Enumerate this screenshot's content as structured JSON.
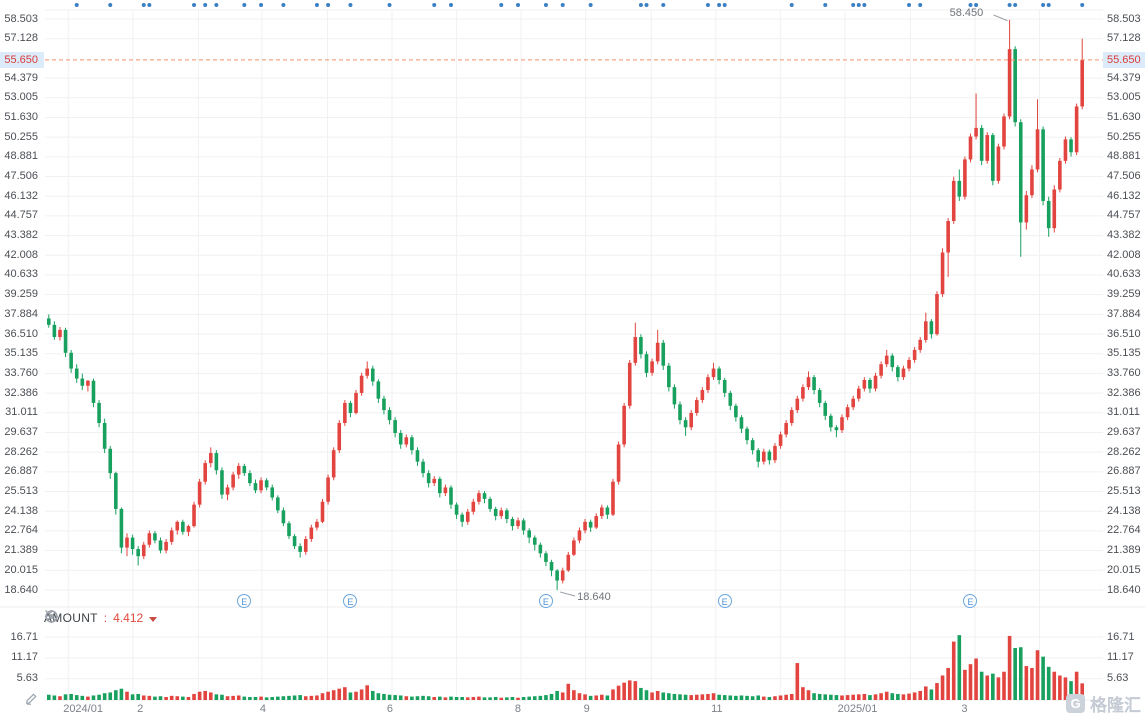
{
  "colors": {
    "up": "#e2443f",
    "down": "#18a05e",
    "grid": "#f0f1f3",
    "current_price_line": "#f0906a",
    "price_tag_bg": "#dcebf9",
    "price_tag_text": "#d93a3a",
    "event_dot": "#3b80c4",
    "earnings_marker": "#4f94d6",
    "axis_text": "#4b4f55",
    "time_text": "#7c828a"
  },
  "indicator": {
    "settings_icon": "gear-icon",
    "remove_icon": "circle-x-icon",
    "name": "AMOUNT",
    "separator": ":",
    "value": "4.412"
  },
  "watermark": {
    "logo_letter": "G",
    "text": "格隆汇"
  },
  "tags": {
    "current_price": "55.650"
  },
  "annotations": {
    "high": "58.450",
    "low": "18.640"
  },
  "chart_data": {
    "type": "candlestick-with-volume",
    "title": "",
    "price_axis": {
      "tick_labels": [
        "58.503",
        "57.128",
        "54.379",
        "53.005",
        "51.630",
        "50.255",
        "48.881",
        "47.506",
        "46.132",
        "44.757",
        "43.382",
        "42.008",
        "40.633",
        "39.259",
        "37.884",
        "36.510",
        "35.135",
        "33.760",
        "32.386",
        "31.011",
        "29.637",
        "28.262",
        "26.887",
        "25.513",
        "24.138",
        "22.764",
        "21.389",
        "20.015",
        "18.640"
      ],
      "ylim": [
        18.64,
        58.503
      ],
      "current_price": 55.65,
      "shown_both_sides": true
    },
    "volume_axis": {
      "tick_labels": [
        "16.71",
        "11.17",
        "5.63"
      ],
      "max": 18.0
    },
    "time_axis": {
      "ticks": [
        {
          "label": "2024/01",
          "f": 0.036
        },
        {
          "label": "2",
          "f": 0.09
        },
        {
          "label": "4",
          "f": 0.206
        },
        {
          "label": "6",
          "f": 0.326
        },
        {
          "label": "8",
          "f": 0.447
        },
        {
          "label": "9",
          "f": 0.512
        },
        {
          "label": "11",
          "f": 0.635
        },
        {
          "label": "2025/01",
          "f": 0.768
        },
        {
          "label": "3",
          "f": 0.869
        }
      ],
      "month_grid_f": [
        0.022,
        0.083,
        0.145,
        0.205,
        0.267,
        0.328,
        0.389,
        0.45,
        0.511,
        0.573,
        0.634,
        0.695,
        0.756,
        0.818,
        0.879,
        0.94
      ]
    },
    "high_point": 58.45,
    "low_point": 18.64,
    "earnings_marker_indices": [
      35,
      54,
      89,
      121,
      165
    ],
    "event_dot_indices": [
      5,
      11,
      17,
      18,
      26,
      28,
      30,
      35,
      38,
      42,
      48,
      50,
      54,
      61,
      69,
      72,
      81,
      84,
      89,
      92,
      97,
      106,
      107,
      110,
      118,
      120,
      121,
      133,
      139,
      144,
      145,
      146,
      154,
      156,
      165,
      166,
      172,
      173,
      178,
      179,
      185
    ],
    "candles": [
      [
        37.6,
        37.88,
        36.95,
        37.15,
        1.4
      ],
      [
        37.15,
        37.4,
        36.1,
        36.3,
        1.2
      ],
      [
        36.3,
        37.0,
        36.05,
        36.8,
        1.0
      ],
      [
        36.8,
        36.95,
        34.9,
        35.2,
        1.5
      ],
      [
        35.2,
        35.4,
        33.8,
        34.1,
        1.6
      ],
      [
        34.1,
        34.4,
        33.1,
        33.4,
        1.3
      ],
      [
        33.4,
        33.75,
        32.6,
        32.9,
        1.1
      ],
      [
        32.9,
        33.3,
        32.5,
        33.25,
        0.9
      ],
      [
        33.25,
        33.4,
        31.4,
        31.7,
        1.2
      ],
      [
        31.7,
        31.9,
        30.0,
        30.3,
        1.4
      ],
      [
        30.3,
        30.6,
        28.2,
        28.5,
        1.8
      ],
      [
        28.5,
        28.7,
        26.4,
        26.8,
        2.0
      ],
      [
        26.8,
        26.9,
        23.9,
        24.3,
        2.6
      ],
      [
        24.3,
        24.4,
        21.2,
        21.6,
        3.0
      ],
      [
        21.6,
        22.6,
        21.0,
        22.3,
        2.2
      ],
      [
        22.3,
        22.5,
        21.1,
        21.5,
        1.5
      ],
      [
        21.5,
        21.7,
        20.35,
        21.0,
        1.6
      ],
      [
        21.0,
        22.0,
        20.8,
        21.8,
        1.2
      ],
      [
        21.8,
        22.8,
        21.6,
        22.6,
        1.1
      ],
      [
        22.6,
        22.75,
        21.9,
        22.1,
        0.9
      ],
      [
        22.1,
        22.3,
        21.2,
        21.4,
        1.0
      ],
      [
        21.4,
        22.2,
        21.2,
        22.0,
        0.8
      ],
      [
        22.0,
        23.0,
        21.8,
        22.8,
        1.1
      ],
      [
        22.8,
        23.5,
        22.5,
        23.4,
        1.0
      ],
      [
        23.4,
        23.55,
        22.5,
        22.7,
        0.9
      ],
      [
        22.7,
        23.2,
        22.4,
        23.1,
        0.8
      ],
      [
        23.1,
        24.8,
        23.0,
        24.6,
        1.6
      ],
      [
        24.6,
        26.4,
        24.4,
        26.2,
        2.2
      ],
      [
        26.2,
        27.7,
        26.0,
        27.5,
        2.4
      ],
      [
        27.5,
        28.6,
        27.2,
        28.2,
        2.0
      ],
      [
        28.2,
        28.4,
        26.7,
        27.0,
        1.5
      ],
      [
        27.0,
        27.2,
        25.0,
        25.3,
        1.4
      ],
      [
        25.3,
        26.0,
        24.9,
        25.8,
        1.0
      ],
      [
        25.8,
        26.9,
        25.6,
        26.7,
        1.1
      ],
      [
        26.7,
        27.5,
        26.4,
        27.3,
        1.2
      ],
      [
        27.3,
        27.45,
        26.6,
        26.8,
        0.9
      ],
      [
        26.8,
        27.0,
        25.9,
        26.1,
        0.8
      ],
      [
        26.1,
        26.35,
        25.4,
        25.6,
        0.8
      ],
      [
        25.6,
        26.5,
        25.4,
        26.3,
        0.9
      ],
      [
        26.3,
        26.45,
        25.6,
        25.8,
        0.7
      ],
      [
        25.8,
        26.0,
        24.9,
        25.1,
        0.8
      ],
      [
        25.1,
        25.25,
        24.0,
        24.2,
        0.9
      ],
      [
        24.2,
        24.4,
        23.1,
        23.3,
        1.0
      ],
      [
        23.3,
        23.45,
        22.2,
        22.4,
        1.1
      ],
      [
        22.4,
        22.55,
        21.5,
        21.7,
        1.2
      ],
      [
        21.7,
        21.9,
        20.9,
        21.3,
        1.3
      ],
      [
        21.3,
        22.4,
        21.1,
        22.2,
        1.0
      ],
      [
        22.2,
        23.2,
        22.0,
        23.0,
        1.1
      ],
      [
        23.0,
        23.6,
        22.8,
        23.4,
        1.2
      ],
      [
        23.4,
        25.0,
        23.3,
        24.8,
        1.8
      ],
      [
        24.8,
        26.7,
        24.6,
        26.5,
        2.2
      ],
      [
        26.5,
        28.6,
        26.3,
        28.4,
        2.6
      ],
      [
        28.4,
        30.5,
        28.2,
        30.3,
        3.0
      ],
      [
        30.3,
        31.9,
        30.1,
        31.7,
        3.4
      ],
      [
        31.7,
        31.85,
        30.7,
        31.0,
        2.0
      ],
      [
        31.0,
        32.6,
        30.9,
        32.4,
        2.2
      ],
      [
        32.4,
        33.8,
        32.2,
        33.6,
        2.8
      ],
      [
        33.6,
        34.6,
        33.4,
        34.1,
        3.9
      ],
      [
        34.1,
        34.3,
        32.9,
        33.2,
        2.4
      ],
      [
        33.2,
        33.35,
        31.7,
        32.0,
        1.8
      ],
      [
        32.0,
        32.2,
        30.9,
        31.2,
        1.6
      ],
      [
        31.2,
        31.4,
        30.2,
        30.5,
        1.4
      ],
      [
        30.5,
        30.7,
        29.3,
        29.6,
        1.3
      ],
      [
        29.6,
        29.8,
        28.5,
        28.8,
        1.2
      ],
      [
        28.8,
        29.5,
        28.6,
        29.3,
        1.0
      ],
      [
        29.3,
        29.45,
        28.1,
        28.4,
        0.9
      ],
      [
        28.4,
        28.6,
        27.3,
        27.6,
        1.0
      ],
      [
        27.6,
        27.8,
        26.5,
        26.8,
        1.1
      ],
      [
        26.8,
        27.0,
        25.8,
        26.1,
        1.0
      ],
      [
        26.1,
        26.6,
        25.9,
        26.4,
        0.8
      ],
      [
        26.4,
        26.55,
        25.1,
        25.4,
        0.9
      ],
      [
        25.4,
        26.0,
        25.2,
        25.8,
        0.7
      ],
      [
        25.8,
        25.95,
        24.3,
        24.6,
        0.9
      ],
      [
        24.6,
        24.75,
        23.6,
        23.9,
        0.8
      ],
      [
        23.9,
        24.05,
        23.05,
        23.4,
        0.8
      ],
      [
        23.4,
        24.3,
        23.2,
        24.1,
        0.7
      ],
      [
        24.1,
        25.0,
        23.9,
        24.8,
        0.8
      ],
      [
        24.8,
        25.6,
        24.6,
        25.4,
        0.9
      ],
      [
        25.4,
        25.55,
        24.7,
        25.0,
        0.7
      ],
      [
        25.0,
        25.15,
        24.1,
        24.3,
        0.7
      ],
      [
        24.3,
        24.45,
        23.5,
        23.8,
        0.8
      ],
      [
        23.8,
        24.4,
        23.6,
        24.2,
        0.6
      ],
      [
        24.2,
        24.35,
        23.3,
        23.6,
        0.7
      ],
      [
        23.6,
        23.75,
        22.8,
        23.1,
        0.8
      ],
      [
        23.1,
        23.7,
        22.9,
        23.5,
        0.6
      ],
      [
        23.5,
        23.65,
        22.5,
        22.8,
        0.8
      ],
      [
        22.8,
        22.95,
        21.9,
        22.3,
        0.9
      ],
      [
        22.3,
        22.45,
        21.4,
        21.8,
        1.0
      ],
      [
        21.8,
        21.95,
        20.9,
        21.2,
        1.1
      ],
      [
        21.2,
        21.35,
        20.3,
        20.6,
        1.3
      ],
      [
        20.6,
        20.75,
        19.6,
        20.0,
        1.6
      ],
      [
        20.0,
        20.1,
        18.64,
        19.3,
        2.4
      ],
      [
        19.3,
        20.2,
        19.1,
        20.0,
        2.0
      ],
      [
        20.0,
        21.3,
        19.9,
        21.1,
        4.3
      ],
      [
        21.1,
        22.3,
        21.0,
        22.1,
        2.6
      ],
      [
        22.1,
        23.0,
        21.9,
        22.8,
        1.8
      ],
      [
        22.8,
        23.6,
        22.6,
        23.4,
        1.5
      ],
      [
        23.4,
        23.55,
        22.7,
        23.0,
        1.1
      ],
      [
        23.0,
        24.0,
        22.9,
        23.8,
        1.2
      ],
      [
        23.8,
        24.6,
        23.6,
        24.4,
        1.4
      ],
      [
        24.4,
        24.55,
        23.6,
        23.9,
        1.2
      ],
      [
        23.9,
        26.4,
        23.8,
        26.2,
        2.8
      ],
      [
        26.2,
        29.0,
        26.0,
        28.8,
        3.8
      ],
      [
        28.8,
        31.7,
        28.6,
        31.5,
        4.6
      ],
      [
        31.5,
        34.7,
        31.3,
        34.5,
        5.2
      ],
      [
        34.5,
        37.3,
        34.3,
        36.3,
        5.0
      ],
      [
        36.3,
        36.5,
        34.8,
        35.1,
        3.2
      ],
      [
        35.1,
        35.3,
        33.5,
        33.8,
        2.6
      ],
      [
        33.8,
        34.8,
        33.6,
        34.6,
        2.0
      ],
      [
        34.6,
        36.8,
        34.4,
        35.9,
        2.4
      ],
      [
        35.9,
        36.1,
        34.0,
        34.3,
        2.0
      ],
      [
        34.3,
        34.5,
        32.5,
        32.8,
        1.8
      ],
      [
        32.8,
        33.0,
        31.3,
        31.6,
        1.6
      ],
      [
        31.6,
        31.8,
        30.2,
        30.5,
        1.5
      ],
      [
        30.5,
        30.7,
        29.4,
        30.0,
        1.4
      ],
      [
        30.0,
        31.2,
        29.8,
        31.0,
        1.3
      ],
      [
        31.0,
        32.1,
        30.8,
        31.9,
        1.4
      ],
      [
        31.9,
        32.8,
        31.7,
        32.6,
        1.5
      ],
      [
        32.6,
        33.7,
        32.4,
        33.5,
        1.6
      ],
      [
        33.5,
        34.5,
        33.3,
        34.1,
        1.8
      ],
      [
        34.1,
        34.25,
        33.0,
        33.3,
        1.4
      ],
      [
        33.3,
        33.45,
        32.1,
        32.4,
        1.3
      ],
      [
        32.4,
        32.55,
        31.2,
        31.5,
        1.2
      ],
      [
        31.5,
        31.65,
        30.4,
        30.7,
        1.1
      ],
      [
        30.7,
        30.85,
        29.6,
        29.9,
        1.2
      ],
      [
        29.9,
        30.05,
        28.8,
        29.1,
        1.1
      ],
      [
        29.1,
        29.25,
        28.1,
        28.4,
        1.0
      ],
      [
        28.4,
        28.55,
        27.2,
        27.6,
        1.2
      ],
      [
        27.6,
        28.5,
        27.4,
        28.3,
        0.9
      ],
      [
        28.3,
        28.45,
        27.4,
        27.7,
        0.8
      ],
      [
        27.7,
        28.9,
        27.5,
        28.7,
        1.0
      ],
      [
        28.7,
        29.7,
        28.5,
        29.5,
        1.2
      ],
      [
        29.5,
        30.5,
        29.3,
        30.3,
        1.4
      ],
      [
        30.3,
        31.4,
        30.1,
        31.2,
        1.6
      ],
      [
        31.2,
        32.2,
        31.0,
        32.0,
        9.8
      ],
      [
        32.0,
        33.0,
        31.8,
        32.8,
        3.4
      ],
      [
        32.8,
        33.9,
        32.6,
        33.5,
        2.6
      ],
      [
        33.5,
        33.65,
        32.3,
        32.6,
        1.8
      ],
      [
        32.6,
        32.75,
        31.4,
        31.7,
        1.6
      ],
      [
        31.7,
        31.85,
        30.5,
        30.8,
        1.5
      ],
      [
        30.8,
        30.95,
        29.7,
        30.0,
        1.4
      ],
      [
        30.0,
        30.15,
        29.3,
        29.8,
        1.3
      ],
      [
        29.8,
        30.9,
        29.6,
        30.7,
        1.2
      ],
      [
        30.7,
        31.6,
        30.5,
        31.4,
        1.3
      ],
      [
        31.4,
        32.2,
        31.2,
        32.0,
        1.4
      ],
      [
        32.0,
        32.9,
        31.8,
        32.7,
        1.5
      ],
      [
        32.7,
        33.5,
        32.5,
        33.3,
        1.6
      ],
      [
        33.3,
        33.45,
        32.4,
        32.7,
        1.3
      ],
      [
        32.7,
        33.8,
        32.5,
        33.6,
        1.5
      ],
      [
        33.6,
        34.6,
        33.4,
        34.4,
        1.8
      ],
      [
        34.4,
        35.4,
        34.2,
        35.0,
        2.2
      ],
      [
        35.0,
        35.15,
        33.9,
        34.2,
        1.8
      ],
      [
        34.2,
        34.35,
        33.2,
        33.5,
        1.6
      ],
      [
        33.5,
        34.3,
        33.3,
        34.1,
        1.5
      ],
      [
        34.1,
        34.9,
        33.9,
        34.7,
        1.7
      ],
      [
        34.7,
        35.6,
        34.5,
        35.4,
        2.0
      ],
      [
        35.4,
        36.3,
        35.2,
        36.1,
        2.4
      ],
      [
        36.1,
        38.0,
        35.9,
        37.4,
        3.6
      ],
      [
        37.4,
        37.55,
        36.2,
        36.5,
        2.8
      ],
      [
        36.5,
        39.5,
        36.4,
        39.3,
        4.5
      ],
      [
        39.3,
        42.5,
        39.1,
        42.2,
        6.5
      ],
      [
        42.2,
        44.6,
        40.5,
        44.4,
        8.5
      ],
      [
        44.4,
        47.5,
        44.2,
        47.2,
        15.5
      ],
      [
        47.2,
        48.0,
        45.8,
        46.1,
        17.2
      ],
      [
        46.1,
        48.9,
        45.9,
        48.7,
        8.0
      ],
      [
        48.7,
        50.5,
        48.5,
        50.3,
        9.5
      ],
      [
        50.3,
        53.3,
        50.1,
        50.9,
        11.0
      ],
      [
        50.9,
        51.1,
        48.3,
        48.6,
        7.5
      ],
      [
        48.6,
        50.6,
        48.4,
        50.4,
        6.5
      ],
      [
        50.4,
        50.55,
        46.9,
        47.2,
        7.0
      ],
      [
        47.2,
        49.8,
        47.0,
        49.6,
        6.0
      ],
      [
        49.6,
        51.9,
        49.4,
        51.7,
        7.5
      ],
      [
        51.7,
        58.45,
        51.5,
        56.4,
        17.0
      ],
      [
        56.4,
        56.6,
        51.0,
        51.3,
        13.8
      ],
      [
        51.3,
        51.5,
        41.9,
        44.3,
        14.0
      ],
      [
        44.3,
        46.5,
        43.8,
        46.2,
        9.0
      ],
      [
        46.2,
        48.3,
        46.0,
        48.0,
        8.5
      ],
      [
        48.0,
        52.9,
        47.8,
        50.8,
        13.2
      ],
      [
        50.8,
        51.0,
        45.5,
        45.8,
        11.5
      ],
      [
        45.8,
        46.1,
        43.3,
        43.9,
        8.8
      ],
      [
        43.9,
        46.9,
        43.6,
        46.6,
        7.5
      ],
      [
        46.6,
        48.8,
        46.4,
        48.6,
        6.5
      ],
      [
        48.6,
        50.3,
        48.4,
        50.1,
        6.0
      ],
      [
        50.1,
        50.25,
        48.9,
        49.2,
        5.0
      ],
      [
        49.2,
        52.6,
        49.0,
        52.4,
        7.5
      ],
      [
        52.4,
        57.13,
        52.2,
        55.65,
        4.41
      ]
    ]
  }
}
